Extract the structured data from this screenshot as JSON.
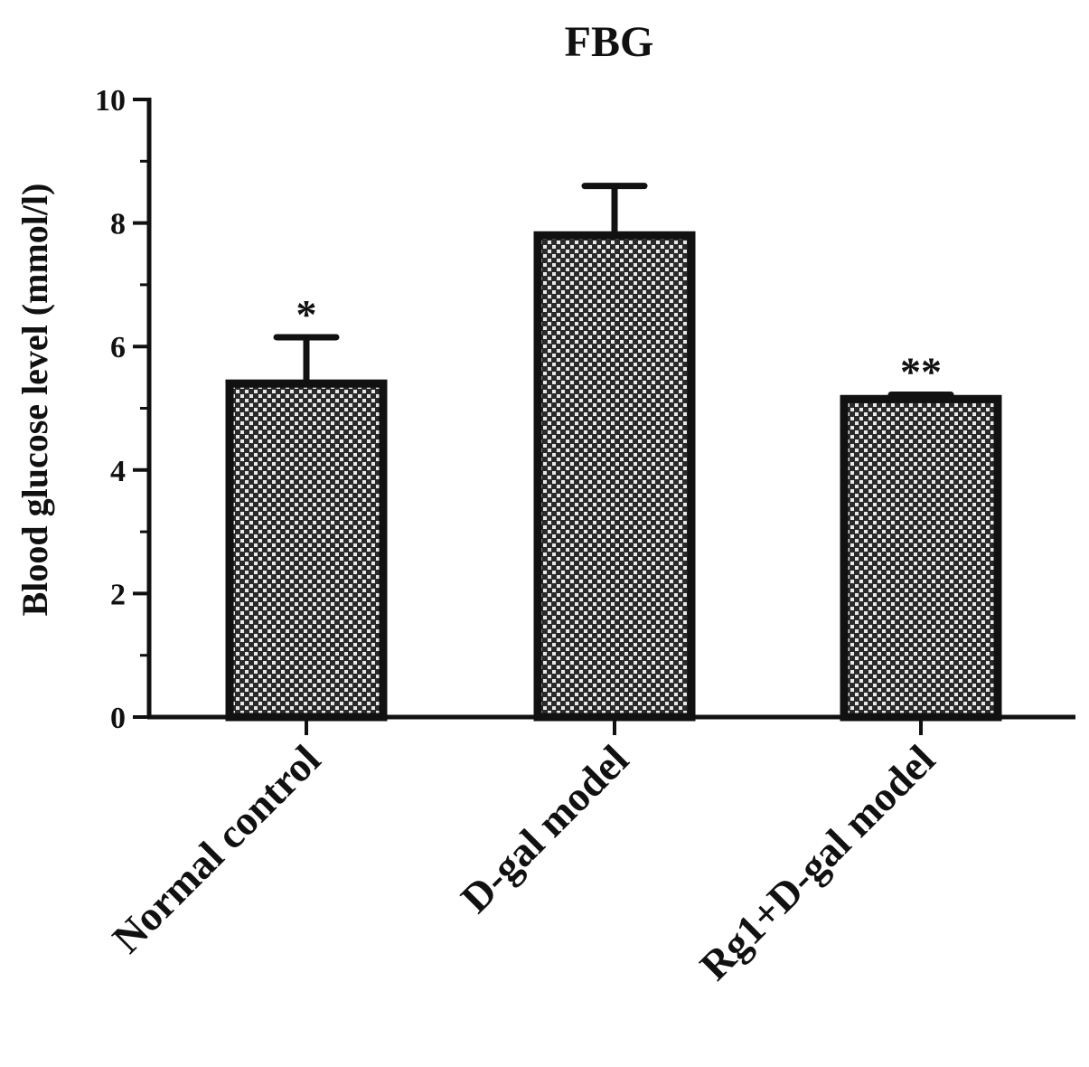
{
  "chart_data": {
    "type": "bar",
    "title": "FBG",
    "ylabel": "Blood glucose level (mmol/l)",
    "xlabel": "",
    "categories": [
      "Normal control",
      "D-gal model",
      "Rg1+D-gal model"
    ],
    "values": [
      5.4,
      7.8,
      5.15
    ],
    "errors": [
      0.75,
      0.8,
      0.07
    ],
    "significance": [
      "*",
      "",
      "**"
    ],
    "ylim": [
      0,
      10
    ],
    "yticks": [
      0,
      2,
      4,
      6,
      8,
      10
    ],
    "ytick_labels": [
      "0",
      "2",
      "4",
      "6",
      "8",
      "10"
    ],
    "bar_fill": "#3a3a3a",
    "bar_edge": "#111111",
    "grid": false,
    "legend": "none"
  }
}
